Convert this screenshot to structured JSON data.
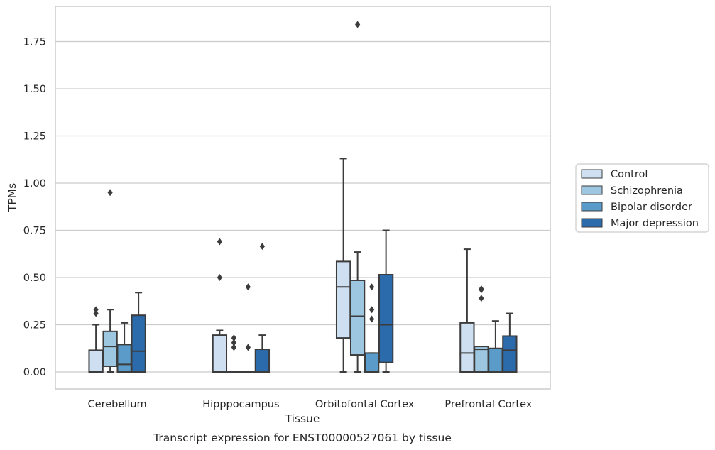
{
  "chart_data": {
    "type": "boxplot",
    "caption": "Transcript expression for ENST00000527061 by tissue",
    "xlabel": "Tissue",
    "ylabel": "TPMs",
    "ylim": [
      -0.09,
      1.9
    ],
    "yticks": [
      "0.00",
      "0.25",
      "0.50",
      "0.75",
      "1.00",
      "1.25",
      "1.50",
      "1.75"
    ],
    "grid": "horizontal",
    "legend_position": "right",
    "categories": [
      "Cerebellum",
      "Hipppocampus",
      "Orbitofontal Cortex",
      "Prefrontal Cortex"
    ],
    "series": [
      {
        "name": "Control",
        "color": "#cddff0",
        "boxes": [
          {
            "whislo": 0.0,
            "q1": 0.0,
            "med": 0.0,
            "q3": 0.115,
            "whishi": 0.25,
            "fliers": [
              0.31,
              0.33
            ]
          },
          {
            "whislo": 0.0,
            "q1": 0.0,
            "med": 0.0,
            "q3": 0.195,
            "whishi": 0.22,
            "fliers": [
              0.5,
              0.69
            ]
          },
          {
            "whislo": 0.0,
            "q1": 0.18,
            "med": 0.45,
            "q3": 0.585,
            "whishi": 1.13,
            "fliers": []
          },
          {
            "whislo": 0.0,
            "q1": 0.0,
            "med": 0.1,
            "q3": 0.26,
            "whishi": 0.65,
            "fliers": []
          }
        ]
      },
      {
        "name": "Schizophrenia",
        "color": "#9dc7e0",
        "boxes": [
          {
            "whislo": 0.0,
            "q1": 0.03,
            "med": 0.135,
            "q3": 0.215,
            "whishi": 0.33,
            "fliers": [
              0.95
            ]
          },
          {
            "whislo": 0.0,
            "q1": 0.0,
            "med": 0.0,
            "q3": 0.0,
            "whishi": 0.0,
            "fliers": [
              0.13,
              0.155,
              0.18
            ]
          },
          {
            "whislo": 0.0,
            "q1": 0.09,
            "med": 0.295,
            "q3": 0.485,
            "whishi": 0.635,
            "fliers": [
              1.84
            ]
          },
          {
            "whislo": 0.0,
            "q1": 0.0,
            "med": 0.12,
            "q3": 0.135,
            "whishi": 0.135,
            "fliers": [
              0.39,
              0.435,
              0.44
            ]
          }
        ]
      },
      {
        "name": "Bipolar disorder",
        "color": "#5a9bc9",
        "boxes": [
          {
            "whislo": 0.0,
            "q1": 0.0,
            "med": 0.04,
            "q3": 0.145,
            "whishi": 0.26,
            "fliers": []
          },
          {
            "whislo": 0.0,
            "q1": 0.0,
            "med": 0.0,
            "q3": 0.0,
            "whishi": 0.0,
            "fliers": [
              0.13,
              0.45
            ]
          },
          {
            "whislo": 0.0,
            "q1": 0.0,
            "med": 0.0,
            "q3": 0.1,
            "whishi": 0.1,
            "fliers": [
              0.28,
              0.33,
              0.45
            ]
          },
          {
            "whislo": 0.0,
            "q1": 0.0,
            "med": 0.0,
            "q3": 0.125,
            "whishi": 0.27,
            "fliers": []
          }
        ]
      },
      {
        "name": "Major depression",
        "color": "#2b6aab",
        "boxes": [
          {
            "whislo": 0.0,
            "q1": 0.0,
            "med": 0.11,
            "q3": 0.3,
            "whishi": 0.42,
            "fliers": []
          },
          {
            "whislo": 0.0,
            "q1": 0.0,
            "med": 0.0,
            "q3": 0.12,
            "whishi": 0.195,
            "fliers": [
              0.665
            ]
          },
          {
            "whislo": 0.0,
            "q1": 0.05,
            "med": 0.25,
            "q3": 0.515,
            "whishi": 0.75,
            "fliers": []
          },
          {
            "whislo": 0.0,
            "q1": 0.0,
            "med": 0.115,
            "q3": 0.19,
            "whishi": 0.31,
            "fliers": []
          }
        ]
      }
    ]
  }
}
